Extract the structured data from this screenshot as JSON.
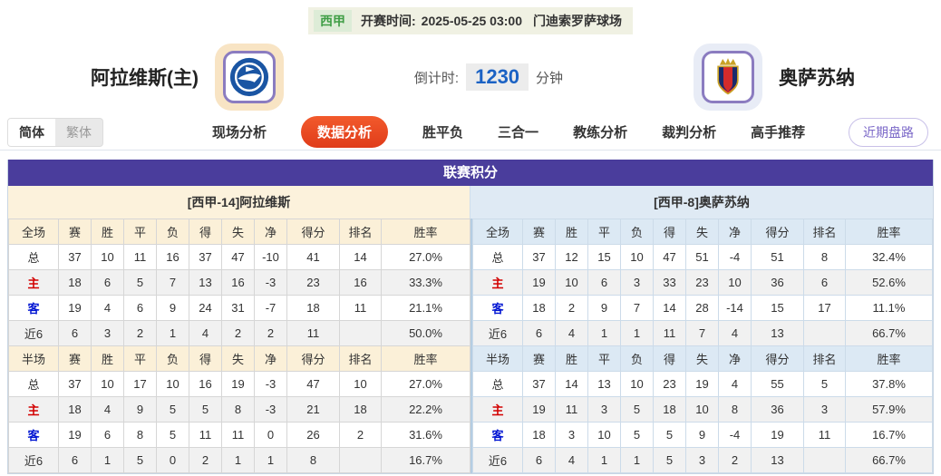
{
  "top_bar": {
    "league": "西甲",
    "kickoff_label": "开赛时间:",
    "kickoff_time": "2025-05-25 03:00",
    "venue": "门迪索罗萨球场"
  },
  "header": {
    "home_team": "阿拉维斯(主)",
    "away_team": "奥萨苏纳",
    "countdown_label": "倒计时:",
    "countdown_value": "1230",
    "countdown_unit": "分钟"
  },
  "toolbar": {
    "lang_options": [
      "简体",
      "繁体"
    ],
    "active_lang": "简体",
    "tabs": [
      "现场分析",
      "数据分析",
      "胜平负",
      "三合一",
      "教练分析",
      "裁判分析",
      "高手推荐"
    ],
    "active_tab": "数据分析",
    "recent_trends_button": "近期盘路"
  },
  "standings": {
    "title": "联赛积分",
    "full_label": "全场",
    "half_label": "半场",
    "columns": [
      "赛",
      "胜",
      "平",
      "负",
      "得",
      "失",
      "净",
      "得分",
      "排名",
      "胜率"
    ],
    "row_labels": [
      "总",
      "主",
      "客",
      "近6"
    ],
    "home": {
      "banner": "[西甲-14]阿拉维斯",
      "full": [
        [
          "37",
          "10",
          "11",
          "16",
          "37",
          "47",
          "-10",
          "41",
          "14",
          "27.0%"
        ],
        [
          "18",
          "6",
          "5",
          "7",
          "13",
          "16",
          "-3",
          "23",
          "16",
          "33.3%"
        ],
        [
          "19",
          "4",
          "6",
          "9",
          "24",
          "31",
          "-7",
          "18",
          "11",
          "21.1%"
        ],
        [
          "6",
          "3",
          "2",
          "1",
          "4",
          "2",
          "2",
          "11",
          "",
          "50.0%"
        ]
      ],
      "half": [
        [
          "37",
          "10",
          "17",
          "10",
          "16",
          "19",
          "-3",
          "47",
          "10",
          "27.0%"
        ],
        [
          "18",
          "4",
          "9",
          "5",
          "5",
          "8",
          "-3",
          "21",
          "18",
          "22.2%"
        ],
        [
          "19",
          "6",
          "8",
          "5",
          "11",
          "11",
          "0",
          "26",
          "2",
          "31.6%"
        ],
        [
          "6",
          "1",
          "5",
          "0",
          "2",
          "1",
          "1",
          "8",
          "",
          "16.7%"
        ]
      ]
    },
    "away": {
      "banner": "[西甲-8]奥萨苏纳",
      "full": [
        [
          "37",
          "12",
          "15",
          "10",
          "47",
          "51",
          "-4",
          "51",
          "8",
          "32.4%"
        ],
        [
          "19",
          "10",
          "6",
          "3",
          "33",
          "23",
          "10",
          "36",
          "6",
          "52.6%"
        ],
        [
          "18",
          "2",
          "9",
          "7",
          "14",
          "28",
          "-14",
          "15",
          "17",
          "11.1%"
        ],
        [
          "6",
          "4",
          "1",
          "1",
          "11",
          "7",
          "4",
          "13",
          "",
          "66.7%"
        ]
      ],
      "half": [
        [
          "37",
          "14",
          "13",
          "10",
          "23",
          "19",
          "4",
          "55",
          "5",
          "37.8%"
        ],
        [
          "19",
          "11",
          "3",
          "5",
          "18",
          "10",
          "8",
          "36",
          "3",
          "57.9%"
        ],
        [
          "18",
          "3",
          "10",
          "5",
          "5",
          "9",
          "-4",
          "19",
          "11",
          "16.7%"
        ],
        [
          "6",
          "4",
          "1",
          "1",
          "5",
          "3",
          "2",
          "13",
          "",
          "66.7%"
        ]
      ]
    }
  },
  "colors": {
    "title_bar_purple": "#4a3d9c",
    "active_tab_red": "#e8491f",
    "home_header_bg": "#fbf0d8",
    "away_header_bg": "#dce9f4",
    "home_row_red": "#d20000",
    "away_row_blue": "#0014d2",
    "countdown_blue": "#1b62c4",
    "league_green": "#3f9e46",
    "recent_trends_purple": "#7b68c8"
  }
}
